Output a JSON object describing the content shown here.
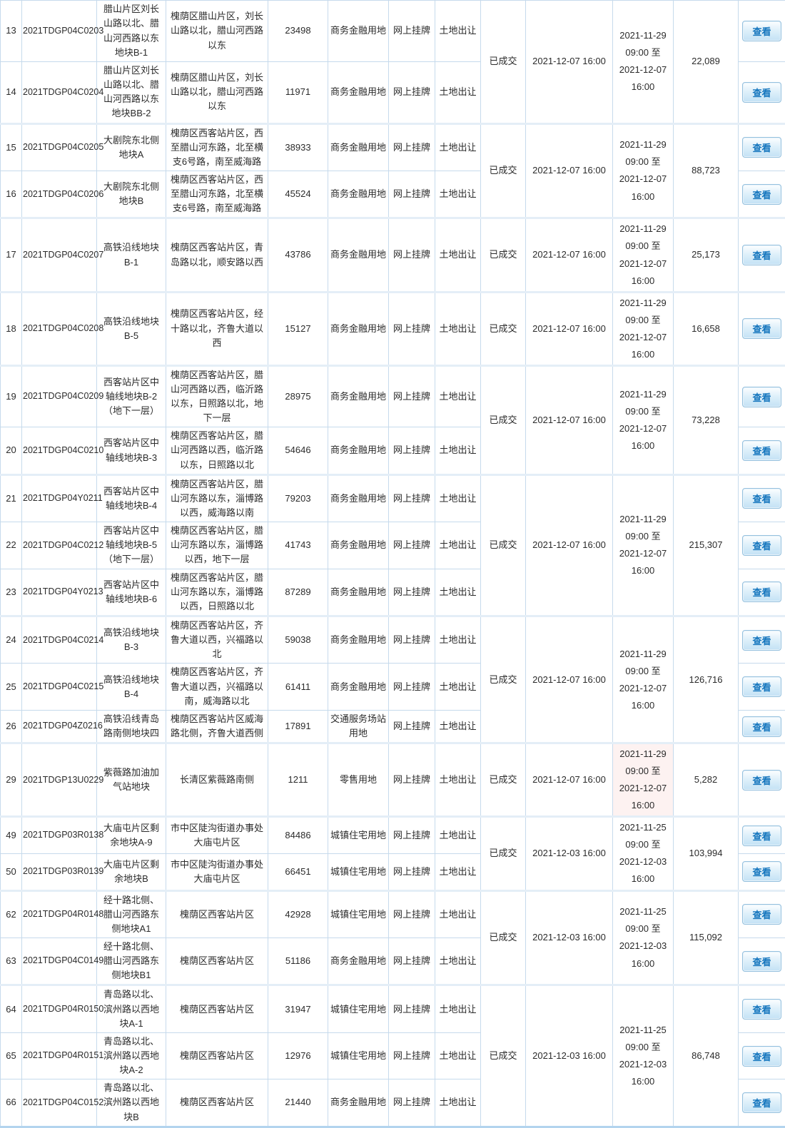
{
  "table": {
    "view_label": "查看",
    "status_label": "已成交",
    "groups": [
      {
        "status": "已成交",
        "deal_time": "2021-12-07 16:00",
        "period": "2021-11-29 09:00 至 2021-12-07 16:00",
        "amount": "22,089",
        "rows": [
          {
            "no": "13",
            "code": "2021TDGP04C0203",
            "name": "腊山片区刘长山路以北、腊山河西路以东地块B-1",
            "location": "槐荫区腊山片区，刘长山路以北，腊山河西路以东",
            "area": "23498",
            "use": "商务金融用地",
            "listing": "网上挂牌",
            "type": "土地出让"
          },
          {
            "no": "14",
            "code": "2021TDGP04C0204",
            "name": "腊山片区刘长山路以北、腊山河西路以东地块BB-2",
            "location": "槐荫区腊山片区，刘长山路以北，腊山河西路以东",
            "area": "11971",
            "use": "商务金融用地",
            "listing": "网上挂牌",
            "type": "土地出让"
          }
        ]
      },
      {
        "status": "已成交",
        "deal_time": "2021-12-07 16:00",
        "period": "2021-11-29 09:00 至 2021-12-07 16:00",
        "amount": "88,723",
        "rows": [
          {
            "no": "15",
            "code": "2021TDGP04C0205",
            "name": "大剧院东北侧地块A",
            "location": "槐荫区西客站片区，西至腊山河东路，北至横支6号路，南至威海路",
            "area": "38933",
            "use": "商务金融用地",
            "listing": "网上挂牌",
            "type": "土地出让"
          },
          {
            "no": "16",
            "code": "2021TDGP04C0206",
            "name": "大剧院东北侧地块B",
            "location": "槐荫区西客站片区，西至腊山河东路，北至横支6号路，南至威海路",
            "area": "45524",
            "use": "商务金融用地",
            "listing": "网上挂牌",
            "type": "土地出让"
          }
        ]
      },
      {
        "status": "已成交",
        "deal_time": "2021-12-07 16:00",
        "period": "2021-11-29 09:00 至 2021-12-07 16:00",
        "amount": "25,173",
        "rows": [
          {
            "no": "17",
            "code": "2021TDGP04C0207",
            "name": "高铁沿线地块B-1",
            "location": "槐荫区西客站片区，青岛路以北，顺安路以西",
            "area": "43786",
            "use": "商务金融用地",
            "listing": "网上挂牌",
            "type": "土地出让"
          }
        ]
      },
      {
        "status": "已成交",
        "deal_time": "2021-12-07 16:00",
        "period": "2021-11-29 09:00 至 2021-12-07 16:00",
        "amount": "16,658",
        "rows": [
          {
            "no": "18",
            "code": "2021TDGP04C0208",
            "name": "高铁沿线地块B-5",
            "location": "槐荫区西客站片区，经十路以北，齐鲁大道以西",
            "area": "15127",
            "use": "商务金融用地",
            "listing": "网上挂牌",
            "type": "土地出让"
          }
        ]
      },
      {
        "status": "已成交",
        "deal_time": "2021-12-07 16:00",
        "period": "2021-11-29 09:00 至 2021-12-07 16:00",
        "amount": "73,228",
        "rows": [
          {
            "no": "19",
            "code": "2021TDGP04C0209",
            "name": "西客站片区中轴线地块B-2（地下一层）",
            "location": "槐荫区西客站片区，腊山河西路以西，临沂路以东，日照路以北，地下一层",
            "area": "28975",
            "use": "商务金融用地",
            "listing": "网上挂牌",
            "type": "土地出让"
          },
          {
            "no": "20",
            "code": "2021TDGP04C0210",
            "name": "西客站片区中轴线地块B-3",
            "location": "槐荫区西客站片区，腊山河西路以西，临沂路以东，日照路以北",
            "area": "54646",
            "use": "商务金融用地",
            "listing": "网上挂牌",
            "type": "土地出让"
          }
        ]
      },
      {
        "status": "已成交",
        "deal_time": "2021-12-07 16:00",
        "period": "2021-11-29 09:00 至 2021-12-07 16:00",
        "amount": "215,307",
        "rows": [
          {
            "no": "21",
            "code": "2021TDGP04Y0211",
            "name": "西客站片区中轴线地块B-4",
            "location": "槐荫区西客站片区，腊山河东路以东，淄博路以西，威海路以南",
            "area": "79203",
            "use": "商务金融用地",
            "listing": "网上挂牌",
            "type": "土地出让"
          },
          {
            "no": "22",
            "code": "2021TDGP04C0212",
            "name": "西客站片区中轴线地块B-5（地下一层）",
            "location": "槐荫区西客站片区，腊山河东路以东，淄博路以西，地下一层",
            "area": "41743",
            "use": "商务金融用地",
            "listing": "网上挂牌",
            "type": "土地出让"
          },
          {
            "no": "23",
            "code": "2021TDGP04Y0213",
            "name": "西客站片区中轴线地块B-6",
            "location": "槐荫区西客站片区，腊山河东路以东，淄博路以西，日照路以北",
            "area": "87289",
            "use": "商务金融用地",
            "listing": "网上挂牌",
            "type": "土地出让"
          }
        ]
      },
      {
        "status": "已成交",
        "deal_time": "2021-12-07 16:00",
        "period": "2021-11-29 09:00 至 2021-12-07 16:00",
        "amount": "126,716",
        "rows": [
          {
            "no": "24",
            "code": "2021TDGP04C0214",
            "name": "高铁沿线地块B-3",
            "location": "槐荫区西客站片区，齐鲁大道以西，兴福路以北",
            "area": "59038",
            "use": "商务金融用地",
            "listing": "网上挂牌",
            "type": "土地出让"
          },
          {
            "no": "25",
            "code": "2021TDGP04C0215",
            "name": "高铁沿线地块B-4",
            "location": "槐荫区西客站片区，齐鲁大道以西，兴福路以南，威海路以北",
            "area": "61411",
            "use": "商务金融用地",
            "listing": "网上挂牌",
            "type": "土地出让"
          },
          {
            "no": "26",
            "code": "2021TDGP04Z0216",
            "name": "高铁沿线青岛路南侧地块四",
            "location": "槐荫区西客站片区威海路北侧，齐鲁大道西侧",
            "area": "17891",
            "use": "交通服务场站用地",
            "listing": "网上挂牌",
            "type": "土地出让"
          }
        ]
      },
      {
        "status": "已成交",
        "deal_time": "2021-12-07 16:00",
        "period": "2021-11-29 09:00 至 2021-12-07 16:00",
        "amount": "5,282",
        "period_tint": true,
        "rows": [
          {
            "no": "29",
            "code": "2021TDGP13U0229",
            "name": "紫薇路加油加气站地块",
            "location": "长清区紫薇路南侧",
            "area": "1211",
            "use": "零售用地",
            "listing": "网上挂牌",
            "type": "土地出让"
          }
        ]
      },
      {
        "status": "已成交",
        "deal_time": "2021-12-03 16:00",
        "period": "2021-11-25 09:00 至 2021-12-03 16:00",
        "amount": "103,994",
        "rows": [
          {
            "no": "49",
            "code": "2021TDGP03R0138",
            "name": "大庙屯片区剩余地块A-9",
            "location": "市中区陡沟街道办事处大庙屯片区",
            "area": "84486",
            "use": "城镇住宅用地",
            "listing": "网上挂牌",
            "type": "土地出让"
          },
          {
            "no": "50",
            "code": "2021TDGP03R0139",
            "name": "大庙屯片区剩余地块B",
            "location": "市中区陡沟街道办事处大庙屯片区",
            "area": "66451",
            "use": "城镇住宅用地",
            "listing": "网上挂牌",
            "type": "土地出让"
          }
        ]
      },
      {
        "status": "已成交",
        "deal_time": "2021-12-03 16:00",
        "period": "2021-11-25 09:00 至 2021-12-03 16:00",
        "amount": "115,092",
        "rows": [
          {
            "no": "62",
            "code": "2021TDGP04R0148",
            "name": "经十路北侧、腊山河西路东侧地块A1",
            "location": "槐荫区西客站片区",
            "area": "42928",
            "use": "城镇住宅用地",
            "listing": "网上挂牌",
            "type": "土地出让"
          },
          {
            "no": "63",
            "code": "2021TDGP04C0149",
            "name": "经十路北侧、腊山河西路东侧地块B1",
            "location": "槐荫区西客站片区",
            "area": "51186",
            "use": "商务金融用地",
            "listing": "网上挂牌",
            "type": "土地出让"
          }
        ]
      },
      {
        "status": "已成交",
        "deal_time": "2021-12-03 16:00",
        "period": "2021-11-25 09:00 至 2021-12-03 16:00",
        "amount": "86,748",
        "rows": [
          {
            "no": "64",
            "code": "2021TDGP04R0150",
            "name": "青岛路以北、滨州路以西地块A-1",
            "location": "槐荫区西客站片区",
            "area": "31947",
            "use": "城镇住宅用地",
            "listing": "网上挂牌",
            "type": "土地出让"
          },
          {
            "no": "65",
            "code": "2021TDGP04R0151",
            "name": "青岛路以北、滨州路以西地块A-2",
            "location": "槐荫区西客站片区",
            "area": "12976",
            "use": "城镇住宅用地",
            "listing": "网上挂牌",
            "type": "土地出让"
          },
          {
            "no": "66",
            "code": "2021TDGP04C0152",
            "name": "青岛路以北、滨州路以西地块B",
            "location": "槐荫区西客站片区",
            "area": "21440",
            "use": "商务金融用地",
            "listing": "网上挂牌",
            "type": "土地出让"
          }
        ]
      }
    ]
  }
}
